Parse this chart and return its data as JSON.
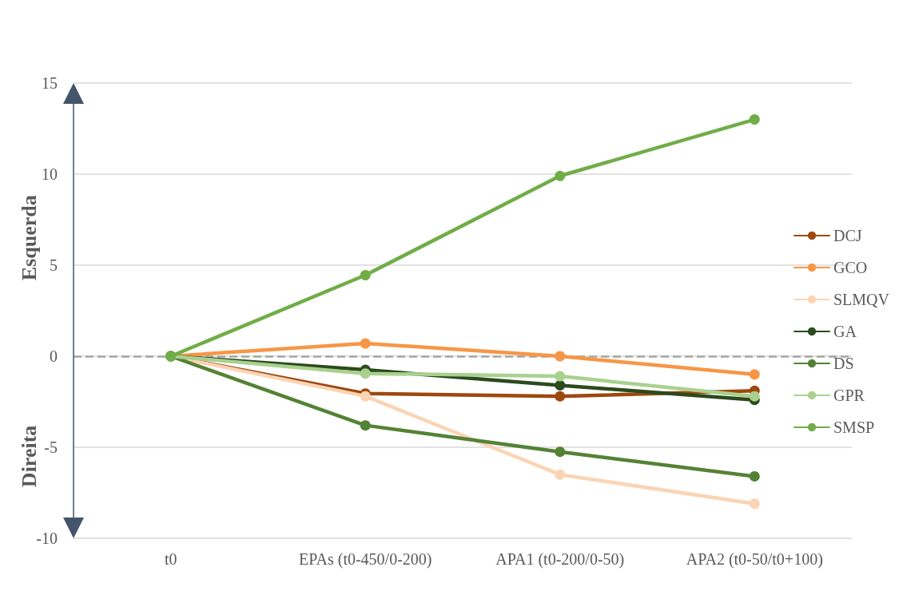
{
  "chart_data": {
    "type": "line",
    "ylabel": "Esquerda",
    "annotations": [
      "Direita"
    ],
    "categories": [
      "t0",
      "EPAs (t0-450/0-200)",
      "APA1 (t0-200/0-50)",
      "APA2 (t0-50/t0+100)"
    ],
    "series": [
      {
        "name": "DCJ",
        "color": "#9e480e",
        "values": [
          0,
          -2.05,
          -2.2,
          -1.9
        ]
      },
      {
        "name": "GCO",
        "color": "#f79646",
        "values": [
          0,
          0.7,
          0,
          -1.0
        ]
      },
      {
        "name": "SLMQV",
        "color": "#fbd4b4",
        "values": [
          0,
          -2.2,
          -6.5,
          -8.1
        ]
      },
      {
        "name": "GA",
        "color": "#2b4a1d",
        "values": [
          0,
          -0.75,
          -1.6,
          -2.4
        ]
      },
      {
        "name": "DS",
        "color": "#548235",
        "values": [
          0,
          -3.8,
          -5.25,
          -6.6
        ]
      },
      {
        "name": "GPR",
        "color": "#a9d18e",
        "values": [
          0,
          -0.95,
          -1.1,
          -2.2
        ]
      },
      {
        "name": "SMSP",
        "color": "#70ad47",
        "values": [
          0,
          4.45,
          9.9,
          13.0
        ]
      }
    ],
    "ylim": [
      -10,
      15
    ],
    "yticks": [
      -10,
      -5,
      0,
      5,
      10,
      15
    ],
    "grid": "y",
    "legend": "right",
    "marker": "circle",
    "line_style": "solid",
    "ref_lines": [
      {
        "axis": "y",
        "value": 0,
        "color": "#a5a5a5",
        "line_style": "dashed"
      }
    ]
  }
}
